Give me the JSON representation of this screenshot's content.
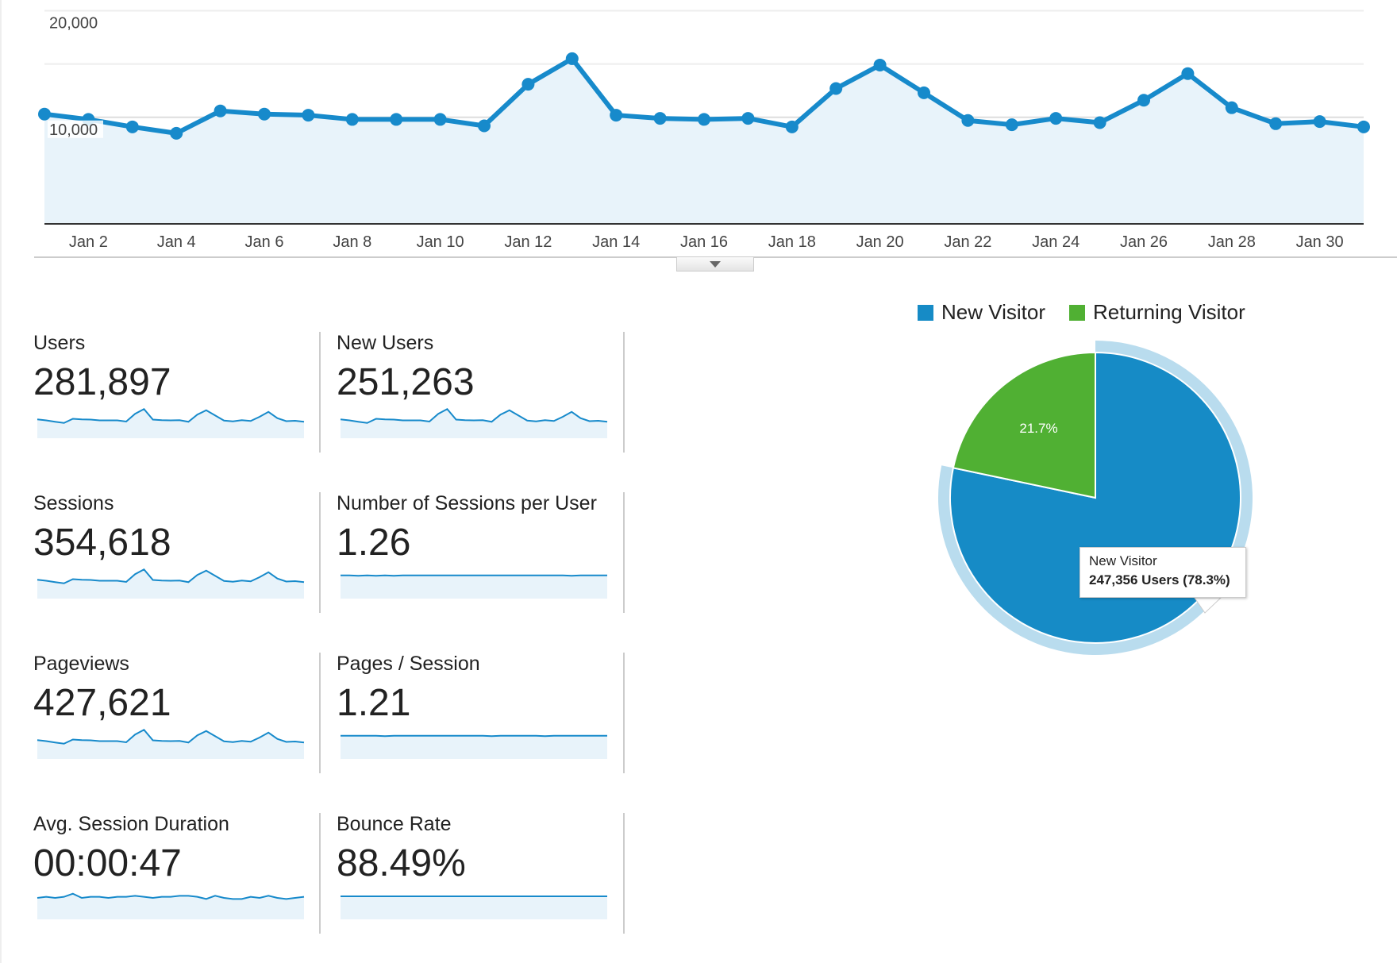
{
  "chart_data": [
    {
      "type": "area",
      "categories": [
        "Jan 1",
        "Jan 2",
        "Jan 3",
        "Jan 4",
        "Jan 5",
        "Jan 6",
        "Jan 7",
        "Jan 8",
        "Jan 9",
        "Jan 10",
        "Jan 11",
        "Jan 12",
        "Jan 13",
        "Jan 14",
        "Jan 15",
        "Jan 16",
        "Jan 17",
        "Jan 18",
        "Jan 19",
        "Jan 20",
        "Jan 21",
        "Jan 22",
        "Jan 23",
        "Jan 24",
        "Jan 25",
        "Jan 26",
        "Jan 27",
        "Jan 28",
        "Jan 29",
        "Jan 30",
        "Jan 31"
      ],
      "x_tick_labels": [
        "Jan 2",
        "Jan 4",
        "Jan 6",
        "Jan 8",
        "Jan 10",
        "Jan 12",
        "Jan 14",
        "Jan 16",
        "Jan 18",
        "Jan 20",
        "Jan 22",
        "Jan 24",
        "Jan 26",
        "Jan 28",
        "Jan 30"
      ],
      "y_tick_labels": [
        "10,000",
        "20,000"
      ],
      "values": [
        10300,
        9800,
        9100,
        8500,
        10600,
        10300,
        10200,
        9800,
        9800,
        9800,
        9200,
        13100,
        15500,
        10200,
        9900,
        9800,
        9900,
        9100,
        12700,
        14900,
        12300,
        9700,
        9300,
        9900,
        9500,
        11600,
        14100,
        10900,
        9400,
        9600,
        9100
      ],
      "ylim": [
        0,
        20000
      ],
      "grid": true,
      "color": "#178acb",
      "fill": "#e8f3fa"
    },
    {
      "type": "pie",
      "legend": [
        "New Visitor",
        "Returning Visitor"
      ],
      "legend_position": "top",
      "slices": [
        {
          "name": "New Visitor",
          "value": 78.3,
          "color": "#168bc6"
        },
        {
          "name": "Returning Visitor",
          "value": 21.7,
          "color": "#50b033",
          "label": "21.7%"
        }
      ],
      "tooltip": {
        "title": "New Visitor",
        "detail": "247,356 Users (78.3%)"
      }
    }
  ],
  "metrics": [
    {
      "label": "Users",
      "value": "281,897",
      "trend": "main"
    },
    {
      "label": "New Users",
      "value": "251,263",
      "trend": "main"
    },
    {
      "label": "Sessions",
      "value": "354,618",
      "trend": "main"
    },
    {
      "label": "Number of Sessions per User",
      "value": "1.26",
      "trend": [
        1.26,
        1.26,
        1.25,
        1.26,
        1.25,
        1.26,
        1.25,
        1.26,
        1.26,
        1.26,
        1.26,
        1.26,
        1.26,
        1.26,
        1.26,
        1.26,
        1.26,
        1.26,
        1.26,
        1.26,
        1.26,
        1.26,
        1.26,
        1.26,
        1.26,
        1.26,
        1.25,
        1.26,
        1.26,
        1.26,
        1.26
      ]
    },
    {
      "label": "Pageviews",
      "value": "427,621",
      "trend": "main"
    },
    {
      "label": "Pages / Session",
      "value": "1.21",
      "trend": [
        1.21,
        1.21,
        1.21,
        1.21,
        1.21,
        1.2,
        1.21,
        1.21,
        1.21,
        1.21,
        1.21,
        1.21,
        1.21,
        1.21,
        1.21,
        1.21,
        1.21,
        1.2,
        1.21,
        1.21,
        1.21,
        1.21,
        1.21,
        1.2,
        1.21,
        1.21,
        1.21,
        1.21,
        1.21,
        1.21,
        1.21
      ]
    },
    {
      "label": "Avg. Session Duration",
      "value": "00:00:47",
      "trend": [
        46,
        47,
        46,
        47,
        50,
        46,
        47,
        47,
        46,
        47,
        47,
        48,
        47,
        46,
        47,
        47,
        48,
        48,
        47,
        45,
        48,
        46,
        45,
        45,
        47,
        46,
        48,
        46,
        45,
        46,
        47
      ]
    },
    {
      "label": "Bounce Rate",
      "value": "88.49%",
      "trend": [
        88.4,
        88.5,
        88.5,
        88.5,
        88.4,
        88.5,
        88.5,
        88.5,
        88.5,
        88.5,
        88.5,
        88.5,
        88.5,
        88.5,
        88.5,
        88.5,
        88.5,
        88.5,
        88.5,
        88.5,
        88.5,
        88.5,
        88.5,
        88.5,
        88.5,
        88.5,
        88.5,
        88.5,
        88.5,
        88.5,
        88.5
      ]
    }
  ]
}
